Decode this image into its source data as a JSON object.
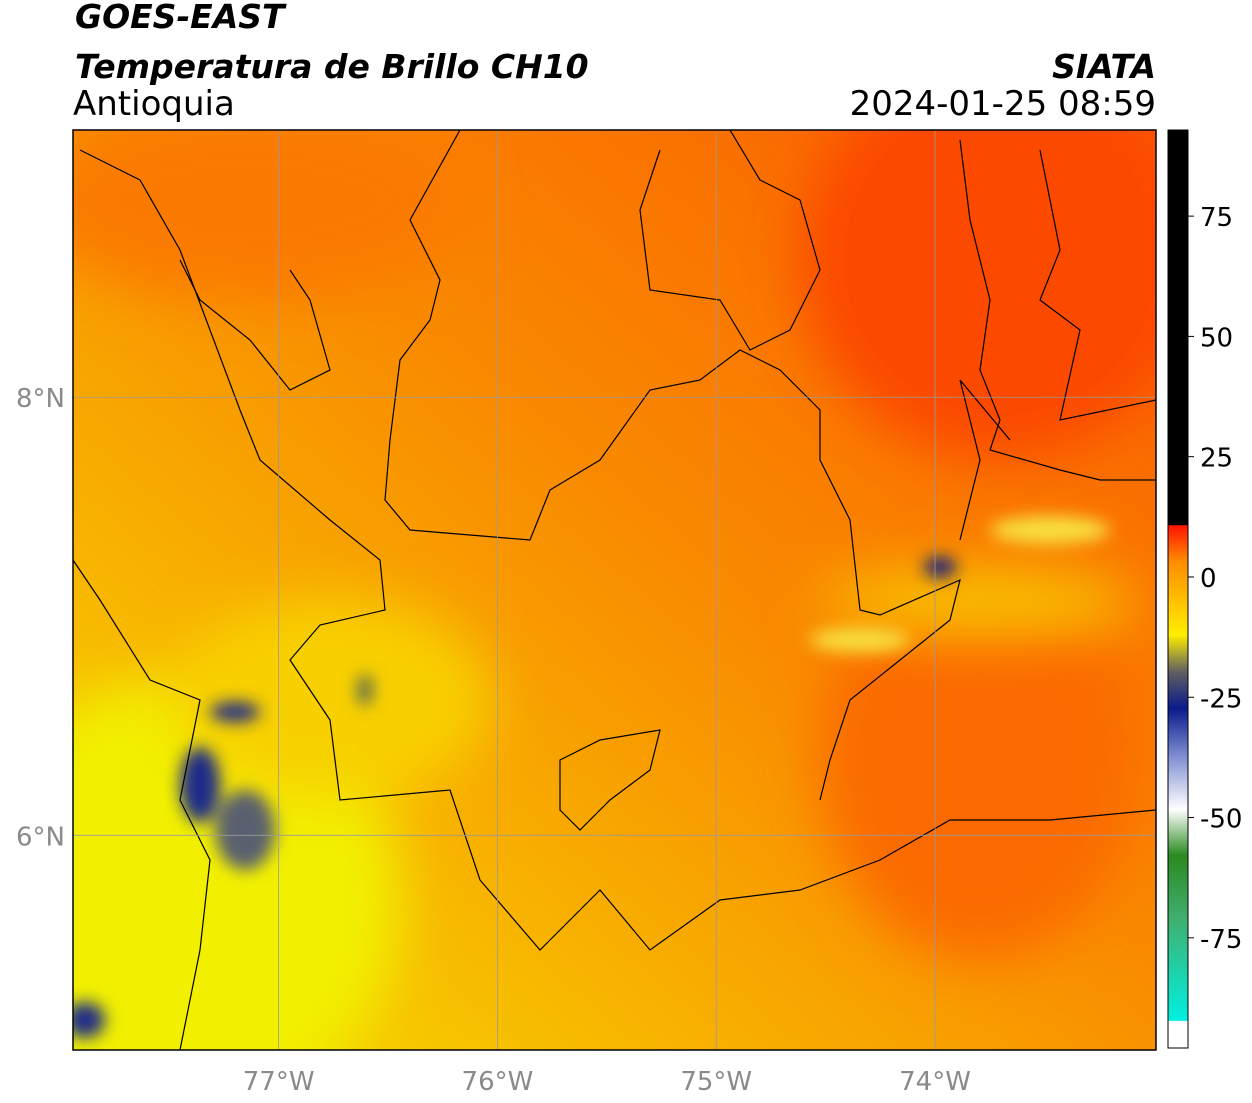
{
  "header": {
    "title": "GOES-EAST",
    "subtitle": "Temperatura de Brillo CH10",
    "region": "Antioquia",
    "source": "SIATA",
    "timestamp": "2024-01-25 08:59"
  },
  "map": {
    "xlim": [
      -77.94,
      -72.99
    ],
    "ylim": [
      5.02,
      9.22
    ],
    "xticks": [
      {
        "value": -77,
        "label": "77°W"
      },
      {
        "value": -76,
        "label": "76°W"
      },
      {
        "value": -75,
        "label": "75°W"
      },
      {
        "value": -74,
        "label": "74°W"
      }
    ],
    "yticks": [
      {
        "value": 8,
        "label": "8°N"
      },
      {
        "value": 6,
        "label": "6°N"
      }
    ],
    "grid": true
  },
  "colorbar": {
    "lim": [
      -97.9,
      92.9
    ],
    "ticks": [
      75,
      50,
      25,
      0,
      -25,
      -50,
      -75
    ]
  }
}
